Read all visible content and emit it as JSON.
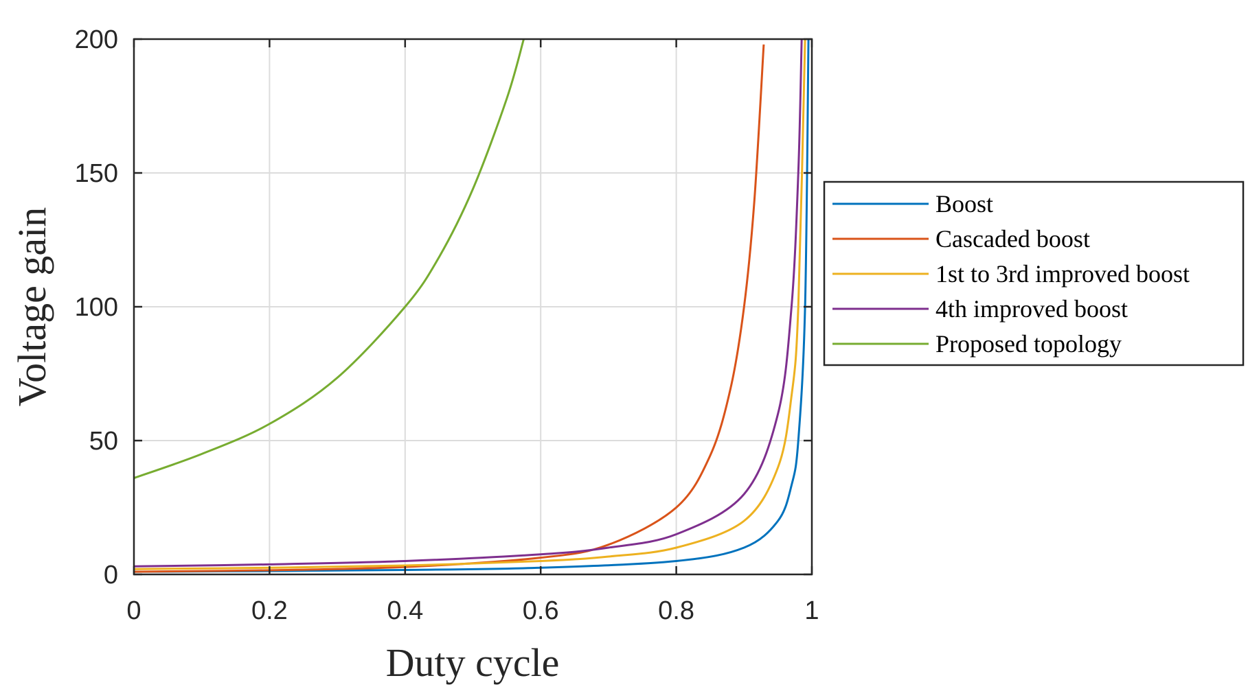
{
  "chart_data": {
    "type": "line",
    "title": "",
    "xlabel": "Duty cycle",
    "ylabel": "Voltage gain",
    "xlim": [
      0,
      1
    ],
    "ylim": [
      0,
      200
    ],
    "grid": true,
    "legend_position": "outside-right",
    "x_ticks": [
      "0",
      "0.2",
      "0.4",
      "0.6",
      "0.8",
      "1"
    ],
    "y_ticks": [
      "0",
      "50",
      "100",
      "150",
      "200"
    ],
    "series": [
      {
        "name": "Boost",
        "color": "#0072BD",
        "x": [
          0,
          0.2,
          0.4,
          0.6,
          0.8,
          0.9,
          0.95,
          0.97,
          0.98,
          0.99,
          0.995
        ],
        "y": [
          1,
          1.25,
          1.67,
          2.5,
          5,
          10,
          20,
          33.3,
          50,
          100,
          200
        ]
      },
      {
        "name": "Cascaded boost",
        "color": "#D95319",
        "x": [
          0,
          0.2,
          0.4,
          0.6,
          0.7,
          0.8,
          0.85,
          0.88,
          0.9,
          0.915,
          0.929
        ],
        "y": [
          1,
          1.56,
          2.78,
          6.25,
          11.1,
          25,
          44.4,
          69.4,
          100,
          139,
          198
        ]
      },
      {
        "name": "1st to 3rd improved boost",
        "color": "#EDB120",
        "x": [
          0,
          0.2,
          0.4,
          0.6,
          0.7,
          0.8,
          0.9,
          0.95,
          0.97,
          0.98,
          0.99
        ],
        "y": [
          2,
          2.5,
          3.33,
          5,
          6.67,
          10,
          20,
          40,
          66.7,
          100,
          200
        ]
      },
      {
        "name": "4th improved boost",
        "color": "#7E2F8E",
        "x": [
          0,
          0.2,
          0.4,
          0.6,
          0.7,
          0.8,
          0.9,
          0.95,
          0.97,
          0.98,
          0.985
        ],
        "y": [
          3,
          3.75,
          5,
          7.5,
          10,
          15,
          30,
          60,
          100,
          150,
          200
        ]
      },
      {
        "name": "Proposed topology",
        "color": "#77AC30",
        "x": [
          0,
          0.1,
          0.2,
          0.3,
          0.4,
          0.45,
          0.5,
          0.55,
          0.575
        ],
        "y": [
          36,
          45,
          56.25,
          73.5,
          100,
          118.5,
          144,
          177.8,
          200
        ]
      }
    ]
  }
}
